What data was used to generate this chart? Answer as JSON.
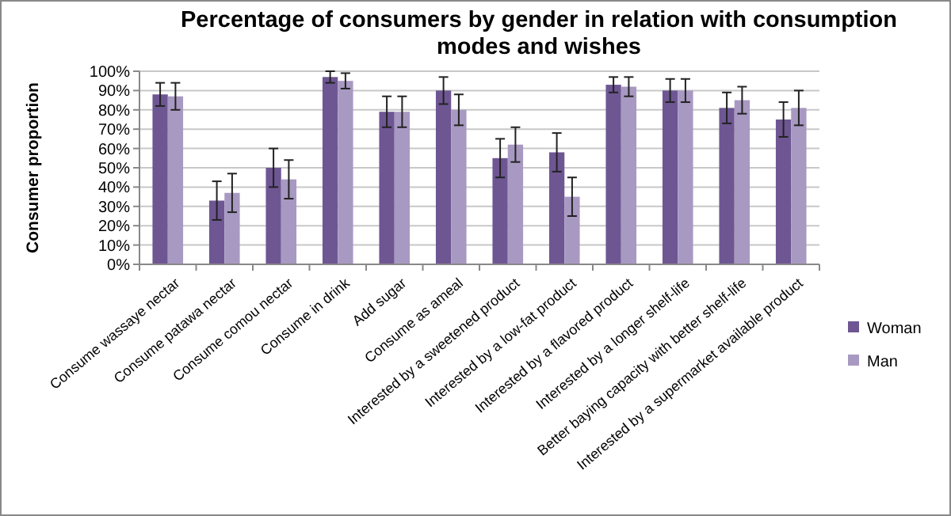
{
  "chart_data": {
    "type": "bar",
    "title": "Percentage of consumers by gender in relation with consumption modes and wishes",
    "ylabel": "Consumer proportion",
    "categories": [
      "Consume wassaye nectar",
      "Consume patawa nectar",
      "Consume comou nectar",
      "Consume in drink",
      "Add sugar",
      "Consume as ameal",
      "Interested by a sweetened product",
      "Interested by a low-fat product",
      "Interested by a flavored product",
      "Interested by a longer shelf-life",
      "Better baying capacity with better shelf-life",
      "Interested by a supermarket available product"
    ],
    "series": [
      {
        "name": "Woman",
        "color": "#6e5693",
        "values": [
          88,
          33,
          50,
          97,
          79,
          90,
          55,
          58,
          93,
          90,
          81,
          75
        ],
        "errors": [
          6,
          10,
          10,
          3,
          8,
          7,
          10,
          10,
          4,
          6,
          8,
          9
        ]
      },
      {
        "name": "Man",
        "color": "#a899c2",
        "values": [
          87,
          37,
          44,
          95,
          79,
          80,
          62,
          35,
          92,
          90,
          85,
          81
        ],
        "errors": [
          7,
          10,
          10,
          4,
          8,
          8,
          9,
          10,
          5,
          6,
          7,
          9
        ]
      }
    ],
    "ylim": [
      0,
      100
    ],
    "yticks": [
      {
        "value": 0,
        "label": "0%"
      },
      {
        "value": 10,
        "label": "10%"
      },
      {
        "value": 20,
        "label": "20%"
      },
      {
        "value": 30,
        "label": "30%"
      },
      {
        "value": 40,
        "label": "40%"
      },
      {
        "value": 50,
        "label": "50%"
      },
      {
        "value": 60,
        "label": "60%"
      },
      {
        "value": 70,
        "label": "70%"
      },
      {
        "value": 80,
        "label": "80%"
      },
      {
        "value": 90,
        "label": "90%"
      },
      {
        "value": 100,
        "label": "100%"
      }
    ],
    "grid": "y",
    "legend": "right"
  }
}
